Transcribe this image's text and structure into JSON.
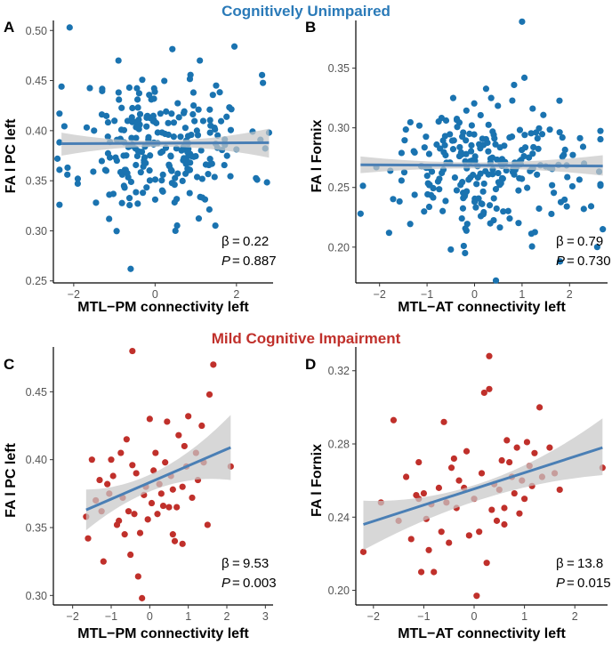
{
  "figure": {
    "section_titles": [
      {
        "text": "Cognitively Unimpaired",
        "color": "#2a7ab8"
      },
      {
        "text": "Mild Cognitive Impairment",
        "color": "#c0302b"
      }
    ]
  },
  "chart_data": [
    {
      "type": "scatter",
      "panel": "A",
      "group": "Cognitively Unimpaired",
      "xlabel": "MTL−PM connectivity left",
      "ylabel": "FA l PC left",
      "xlim": [
        -2.5,
        2.9
      ],
      "ylim": [
        0.248,
        0.51
      ],
      "xticks": [
        -2,
        0,
        2
      ],
      "xtick_labels": [
        "−2",
        "0",
        "2"
      ],
      "yticks": [
        0.25,
        0.3,
        0.35,
        0.4,
        0.45,
        0.5
      ],
      "ytick_labels": [
        "0.25",
        "0.30",
        "0.35",
        "0.40",
        "0.45",
        "0.50"
      ],
      "point_color": "#1a73b0",
      "point_count": 250,
      "regression": {
        "x": [
          -2.3,
          2.8
        ],
        "y": [
          0.387,
          0.388
        ],
        "ci_start": [
          0.375,
          0.398
        ],
        "ci_mid": [
          0.384,
          0.39
        ],
        "ci_end": [
          0.373,
          0.402
        ]
      },
      "stats": {
        "beta_label": "β",
        "beta": "0.22",
        "p_label": "P",
        "p": "0.887"
      },
      "points": [
        [
          -2.1,
          0.503
        ],
        [
          -0.6,
          0.262
        ],
        [
          -2.3,
          0.444
        ],
        [
          -2.4,
          0.372
        ],
        [
          -0.9,
          0.47
        ],
        [
          1.1,
          0.47
        ],
        [
          1.95,
          0.484
        ],
        [
          2.8,
          0.398
        ],
        [
          -1.5,
          0.4
        ],
        [
          -1.2,
          0.36
        ],
        [
          0.5,
          0.3
        ],
        [
          1.5,
          0.445
        ],
        [
          -1.9,
          0.352
        ],
        [
          -0.3,
          0.338
        ]
      ],
      "points_seed": 11,
      "points_mean": [
        0.2,
        0.386
      ],
      "points_sd": [
        1.05,
        0.035
      ]
    },
    {
      "type": "scatter",
      "panel": "B",
      "group": "Cognitively Unimpaired",
      "xlabel": "MTL−AT connectivity left",
      "ylabel": "FA l Fornix",
      "xlim": [
        -2.5,
        2.8
      ],
      "ylim": [
        0.17,
        0.39
      ],
      "xticks": [
        -2,
        -1,
        0,
        1,
        2
      ],
      "xtick_labels": [
        "−2",
        "−1",
        "0",
        "1",
        "2"
      ],
      "yticks": [
        0.2,
        0.25,
        0.3,
        0.35
      ],
      "ytick_labels": [
        "0.20",
        "0.25",
        "0.30",
        "0.35"
      ],
      "point_color": "#1a73b0",
      "point_count": 250,
      "regression": {
        "x": [
          -2.4,
          2.7
        ],
        "y": [
          0.269,
          0.268
        ],
        "ci_start": [
          0.262,
          0.276
        ],
        "ci_mid": [
          0.266,
          0.271
        ],
        "ci_end": [
          0.26,
          0.277
        ]
      },
      "stats": {
        "beta_label": "β",
        "beta": "0.79",
        "p_label": "P",
        "p": "0.730"
      },
      "points": [
        [
          1.0,
          0.389
        ],
        [
          1.05,
          0.342
        ],
        [
          0.45,
          0.172
        ],
        [
          -0.5,
          0.198
        ],
        [
          2.7,
          0.215
        ],
        [
          2.3,
          0.232
        ],
        [
          -2.4,
          0.228
        ],
        [
          -1.8,
          0.212
        ],
        [
          -0.2,
          0.195
        ],
        [
          1.8,
          0.188
        ],
        [
          -0.45,
          0.325
        ],
        [
          0.35,
          0.325
        ]
      ],
      "points_seed": 29,
      "points_mean": [
        0.1,
        0.268
      ],
      "points_sd": [
        1.05,
        0.026
      ]
    },
    {
      "type": "scatter",
      "panel": "C",
      "group": "Mild Cognitive Impairment",
      "xlabel": "MTL−PM connectivity left",
      "ylabel": "FA l PC left",
      "xlim": [
        -2.5,
        3.2
      ],
      "ylim": [
        0.293,
        0.483
      ],
      "xticks": [
        -2,
        -1,
        0,
        1,
        2,
        3
      ],
      "xtick_labels": [
        "−2",
        "−1",
        "0",
        "1",
        "2",
        "3"
      ],
      "yticks": [
        0.3,
        0.35,
        0.4,
        0.45
      ],
      "ytick_labels": [
        "0.30",
        "0.35",
        "0.40",
        "0.45"
      ],
      "point_color": "#c0302b",
      "point_count": 60,
      "regression": {
        "x": [
          -1.65,
          2.1
        ],
        "y": [
          0.363,
          0.409
        ],
        "ci_start": [
          0.348,
          0.378
        ],
        "ci_mid": [
          0.379,
          0.392
        ],
        "ci_end": [
          0.385,
          0.433
        ]
      },
      "stats": {
        "beta_label": "β",
        "beta": "9.53",
        "p_label": "P",
        "p": "0.003"
      },
      "points": [
        [
          -0.45,
          0.48
        ],
        [
          1.65,
          0.47
        ],
        [
          1.55,
          0.448
        ],
        [
          -0.2,
          0.298
        ],
        [
          2.1,
          0.395
        ],
        [
          -1.2,
          0.325
        ],
        [
          -1.65,
          0.358
        ],
        [
          -1.6,
          0.342
        ],
        [
          -1.5,
          0.4
        ],
        [
          -0.3,
          0.314
        ],
        [
          1.35,
          0.425
        ],
        [
          1.5,
          0.352
        ],
        [
          1.0,
          0.432
        ],
        [
          0.45,
          0.428
        ],
        [
          -0.8,
          0.355
        ],
        [
          -0.5,
          0.33
        ],
        [
          0.6,
          0.345
        ],
        [
          0.9,
          0.41
        ],
        [
          0.3,
          0.375
        ],
        [
          -1.0,
          0.4
        ],
        [
          -0.6,
          0.415
        ],
        [
          0.1,
          0.392
        ],
        [
          0.7,
          0.365
        ],
        [
          -0.1,
          0.38
        ],
        [
          1.2,
          0.405
        ],
        [
          -1.3,
          0.385
        ],
        [
          0.0,
          0.43
        ],
        [
          0.5,
          0.365
        ],
        [
          -0.7,
          0.372
        ],
        [
          -1.1,
          0.382
        ],
        [
          0.2,
          0.36
        ],
        [
          -0.4,
          0.36
        ],
        [
          0.95,
          0.395
        ],
        [
          0.85,
          0.38
        ],
        [
          -0.95,
          0.388
        ],
        [
          -0.25,
          0.346
        ],
        [
          -0.15,
          0.374
        ],
        [
          0.4,
          0.398
        ],
        [
          1.1,
          0.372
        ],
        [
          -0.35,
          0.39
        ],
        [
          0.65,
          0.34
        ],
        [
          1.25,
          0.385
        ],
        [
          -1.4,
          0.37
        ],
        [
          -0.55,
          0.362
        ],
        [
          0.15,
          0.405
        ],
        [
          0.75,
          0.418
        ],
        [
          -0.85,
          0.352
        ],
        [
          0.55,
          0.388
        ],
        [
          -1.05,
          0.375
        ],
        [
          0.25,
          0.382
        ],
        [
          -0.45,
          0.396
        ],
        [
          0.35,
          0.366
        ],
        [
          0.05,
          0.368
        ],
        [
          -0.65,
          0.345
        ],
        [
          1.4,
          0.398
        ],
        [
          -0.05,
          0.356
        ],
        [
          0.6,
          0.378
        ],
        [
          -1.25,
          0.362
        ],
        [
          0.85,
          0.338
        ],
        [
          -0.75,
          0.405
        ]
      ]
    },
    {
      "type": "scatter",
      "panel": "D",
      "group": "Mild Cognitive Impairment",
      "xlabel": "MTL−AT connectivity left",
      "ylabel": "FA l Fornix",
      "xlim": [
        -2.35,
        2.65
      ],
      "ylim": [
        0.192,
        0.333
      ],
      "xticks": [
        -2,
        -1,
        0,
        1,
        2
      ],
      "xtick_labels": [
        "−2",
        "−1",
        "0",
        "1",
        "2"
      ],
      "yticks": [
        0.2,
        0.24,
        0.28,
        0.32
      ],
      "ytick_labels": [
        "0.20",
        "0.24",
        "0.28",
        "0.32"
      ],
      "point_color": "#c0302b",
      "point_count": 60,
      "regression": {
        "x": [
          -2.2,
          2.55
        ],
        "y": [
          0.236,
          0.278
        ],
        "ci_start": [
          0.222,
          0.249
        ],
        "ci_mid": [
          0.25,
          0.259
        ],
        "ci_end": [
          0.263,
          0.294
        ]
      },
      "stats": {
        "beta_label": "β",
        "beta": "13.8",
        "p_label": "P",
        "p": "0.015"
      },
      "points": [
        [
          0.3,
          0.328
        ],
        [
          0.3,
          0.31
        ],
        [
          0.2,
          0.308
        ],
        [
          2.55,
          0.267
        ],
        [
          -2.2,
          0.221
        ],
        [
          0.05,
          0.197
        ],
        [
          1.3,
          0.3
        ],
        [
          -1.6,
          0.293
        ],
        [
          -0.6,
          0.292
        ],
        [
          1.05,
          0.281
        ],
        [
          -1.1,
          0.27
        ],
        [
          -1.15,
          0.252
        ],
        [
          -1.0,
          0.253
        ],
        [
          -1.1,
          0.25
        ],
        [
          -0.45,
          0.267
        ],
        [
          -0.3,
          0.26
        ],
        [
          0.5,
          0.255
        ],
        [
          0.7,
          0.27
        ],
        [
          0.9,
          0.242
        ],
        [
          1.1,
          0.268
        ],
        [
          1.5,
          0.278
        ],
        [
          1.7,
          0.255
        ],
        [
          -0.9,
          0.222
        ],
        [
          -0.5,
          0.226
        ],
        [
          -0.1,
          0.23
        ],
        [
          0.25,
          0.215
        ],
        [
          -0.8,
          0.21
        ],
        [
          -1.05,
          0.21
        ],
        [
          0.6,
          0.245
        ],
        [
          1.2,
          0.275
        ],
        [
          0.85,
          0.278
        ],
        [
          -0.65,
          0.232
        ],
        [
          0.0,
          0.25
        ],
        [
          0.45,
          0.238
        ],
        [
          -0.2,
          0.256
        ],
        [
          -1.35,
          0.262
        ],
        [
          -0.85,
          0.247
        ],
        [
          0.75,
          0.262
        ],
        [
          1.35,
          0.262
        ],
        [
          0.95,
          0.26
        ],
        [
          0.55,
          0.271
        ],
        [
          -0.35,
          0.245
        ],
        [
          -1.5,
          0.238
        ],
        [
          0.15,
          0.264
        ],
        [
          -0.7,
          0.256
        ],
        [
          0.65,
          0.282
        ],
        [
          1.0,
          0.25
        ],
        [
          -0.4,
          0.272
        ],
        [
          0.35,
          0.244
        ],
        [
          -1.25,
          0.228
        ],
        [
          0.8,
          0.253
        ],
        [
          -0.15,
          0.276
        ],
        [
          1.6,
          0.264
        ],
        [
          -1.85,
          0.248
        ],
        [
          0.4,
          0.258
        ],
        [
          -0.55,
          0.248
        ],
        [
          1.15,
          0.257
        ],
        [
          -0.95,
          0.239
        ],
        [
          0.1,
          0.232
        ],
        [
          0.6,
          0.236
        ]
      ]
    }
  ]
}
